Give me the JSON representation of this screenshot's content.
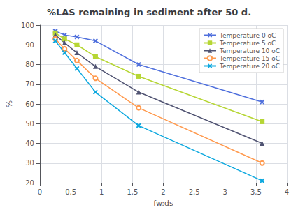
{
  "chart_data": {
    "type": "line",
    "title": "%LAS remaining in sediment after 50 d.",
    "xlabel": "fw:ds",
    "ylabel": "%",
    "xlim": [
      0,
      4
    ],
    "ylim": [
      20,
      100
    ],
    "xticks": [
      0,
      {
        "value": 0.5,
        "label": "0,5"
      },
      1,
      {
        "value": 1.5,
        "label": "1,5"
      },
      2,
      {
        "value": 2.5,
        "label": "2,5"
      },
      3,
      {
        "value": 3.5,
        "label": "3,5"
      },
      4
    ],
    "yticks": [
      20,
      30,
      40,
      50,
      60,
      70,
      80,
      90,
      100
    ],
    "grid": true,
    "legend": "upper right",
    "x": [
      0.25,
      0.4,
      0.6,
      0.9,
      1.6,
      3.6
    ],
    "series": [
      {
        "name": "Temperature 0 oC",
        "marker": "cross",
        "values": [
          97,
          95,
          94,
          92,
          80,
          61
        ]
      },
      {
        "name": "Temperature 5 oC",
        "marker": "square",
        "values": [
          96,
          93,
          90,
          84,
          74,
          51
        ]
      },
      {
        "name": "Temperature 10 oC",
        "marker": "triangle",
        "values": [
          95,
          91,
          86,
          79,
          66,
          40
        ]
      },
      {
        "name": "Temperature 15 oC",
        "marker": "circle",
        "values": [
          93,
          88,
          82,
          73,
          58,
          30
        ]
      },
      {
        "name": "Temperature 20 oC",
        "marker": "cross",
        "values": [
          92,
          86,
          78,
          66,
          49,
          21
        ]
      }
    ]
  }
}
